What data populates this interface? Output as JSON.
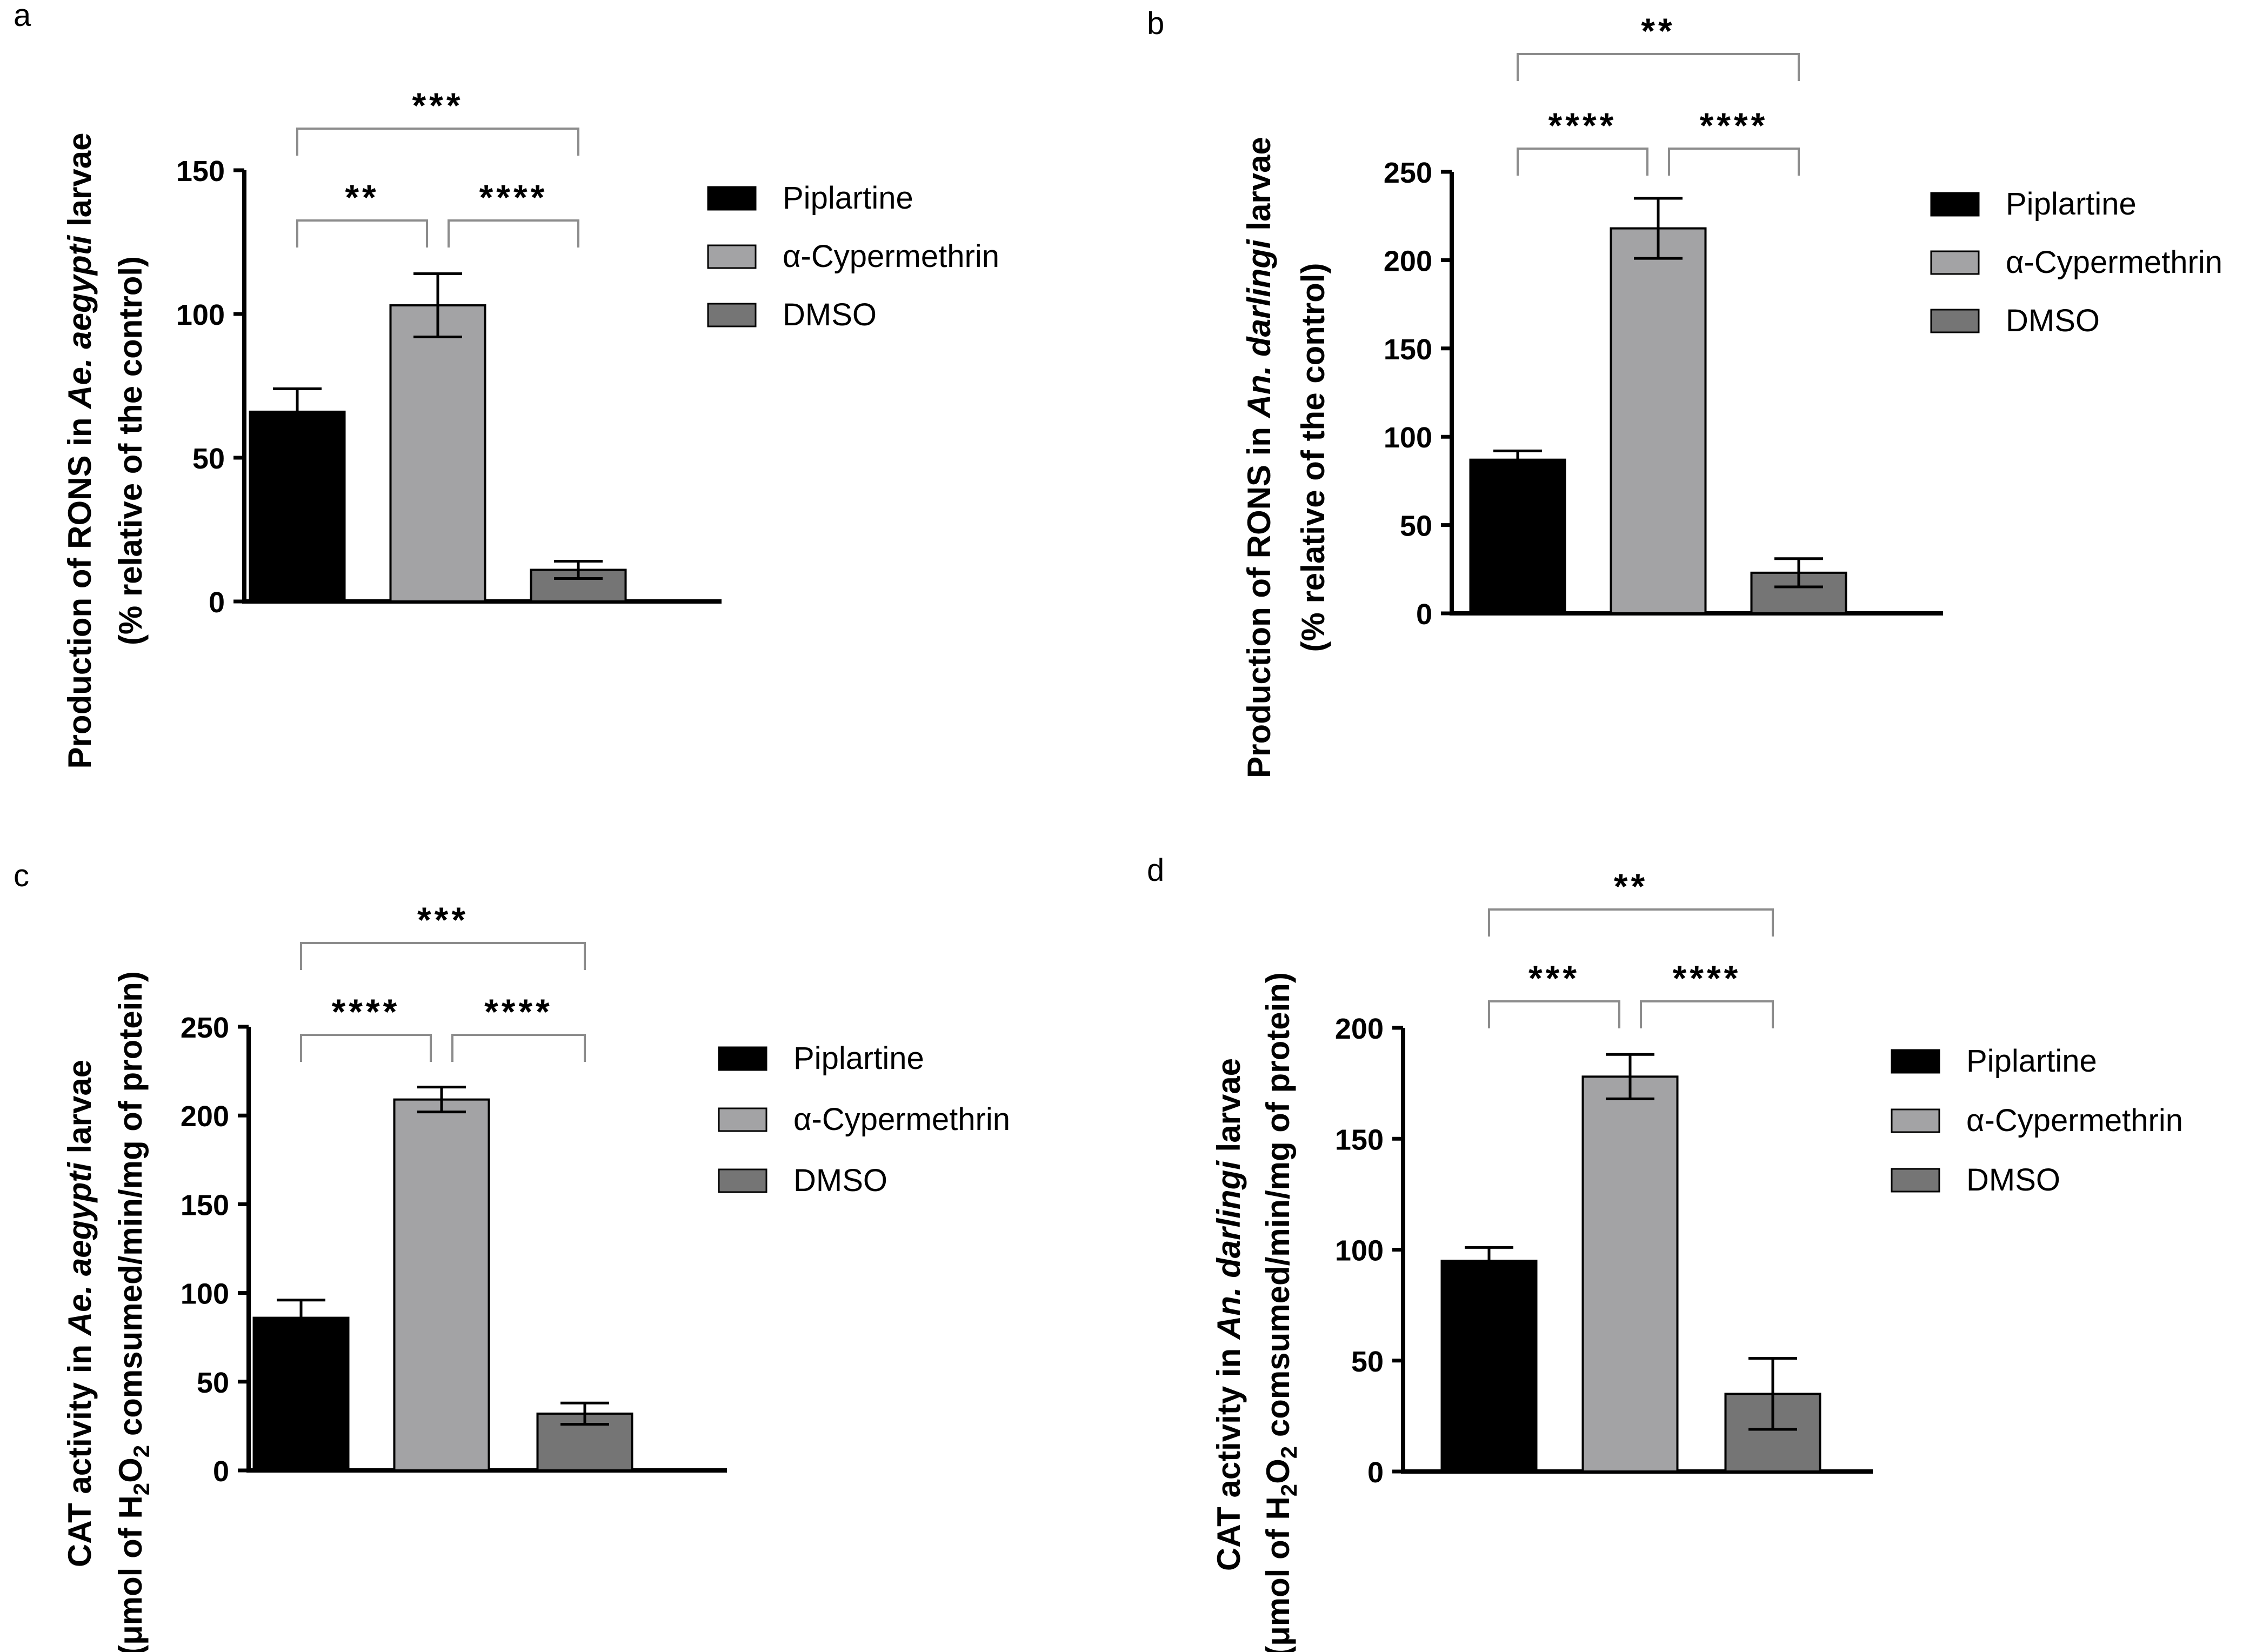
{
  "chart_data": [
    {
      "panel": "a",
      "type": "bar",
      "categories": [
        "Piplartine",
        "α-Cypermethrin",
        "DMSO"
      ],
      "values": [
        66,
        103,
        11
      ],
      "errors": [
        8,
        11,
        3
      ],
      "ylabel_parts": [
        "Production of RONS in ",
        "Ae. aegypti",
        " larvae"
      ],
      "ylabel_line2": "(% relative of the control)",
      "ylim": [
        0,
        150
      ],
      "yticks": [
        0,
        50,
        100,
        150
      ],
      "legend": [
        "Piplartine",
        "α-Cypermethrin",
        "DMSO"
      ],
      "significance": [
        {
          "from": 0,
          "to": 2,
          "label": "***"
        },
        {
          "from": 0,
          "to": 1,
          "label": "**"
        },
        {
          "from": 1,
          "to": 2,
          "label": "****"
        }
      ]
    },
    {
      "panel": "b",
      "type": "bar",
      "categories": [
        "Piplartine",
        "α-Cypermethrin",
        "DMSO"
      ],
      "values": [
        87,
        218,
        23
      ],
      "errors": [
        5,
        17,
        8
      ],
      "ylabel_parts": [
        "Production of RONS in ",
        "An. darlingi",
        " larvae"
      ],
      "ylabel_line2": "(% relative of the control)",
      "ylim": [
        0,
        250
      ],
      "yticks": [
        0,
        50,
        100,
        150,
        200,
        250
      ],
      "legend": [
        "Piplartine",
        "α-Cypermethrin",
        "DMSO"
      ],
      "significance": [
        {
          "from": 0,
          "to": 2,
          "label": "**"
        },
        {
          "from": 0,
          "to": 1,
          "label": "****"
        },
        {
          "from": 1,
          "to": 2,
          "label": "****"
        }
      ]
    },
    {
      "panel": "c",
      "type": "bar",
      "categories": [
        "Piplartine",
        "α-Cypermethrin",
        "DMSO"
      ],
      "values": [
        86,
        209,
        32
      ],
      "errors": [
        10,
        7,
        6
      ],
      "ylabel_parts": [
        "CAT activity in ",
        "Ae. aegypti",
        " larvae"
      ],
      "ylabel_line2_parts": [
        "(μmol of H",
        "2",
        "O",
        "2",
        " comsumed/min/mg of protein)"
      ],
      "ylim": [
        0,
        250
      ],
      "yticks": [
        0,
        50,
        100,
        150,
        200,
        250
      ],
      "legend": [
        "Piplartine",
        "α-Cypermethrin",
        "DMSO"
      ],
      "significance": [
        {
          "from": 0,
          "to": 2,
          "label": "***"
        },
        {
          "from": 0,
          "to": 1,
          "label": "****"
        },
        {
          "from": 1,
          "to": 2,
          "label": "****"
        }
      ]
    },
    {
      "panel": "d",
      "type": "bar",
      "categories": [
        "Piplartine",
        "α-Cypermethrin",
        "DMSO"
      ],
      "values": [
        95,
        178,
        35
      ],
      "errors": [
        6,
        10,
        16
      ],
      "ylabel_parts": [
        "CAT activity in ",
        "An. darlingi",
        " larvae"
      ],
      "ylabel_line2_parts": [
        "(μmol of H",
        "2",
        "O",
        "2",
        " comsumed/min/mg of protein)"
      ],
      "ylim": [
        0,
        200
      ],
      "yticks": [
        0,
        50,
        100,
        150,
        200
      ],
      "legend": [
        "Piplartine",
        "α-Cypermethrin",
        "DMSO"
      ],
      "significance": [
        {
          "from": 0,
          "to": 2,
          "label": "**"
        },
        {
          "from": 0,
          "to": 1,
          "label": "***"
        },
        {
          "from": 1,
          "to": 2,
          "label": "****"
        }
      ]
    }
  ],
  "colors": {
    "Piplartine": "#000000",
    "α-Cypermethrin": "#a3a3a5",
    "DMSO": "#757575",
    "bracket": "#8c8c8c",
    "axis": "#000000"
  }
}
